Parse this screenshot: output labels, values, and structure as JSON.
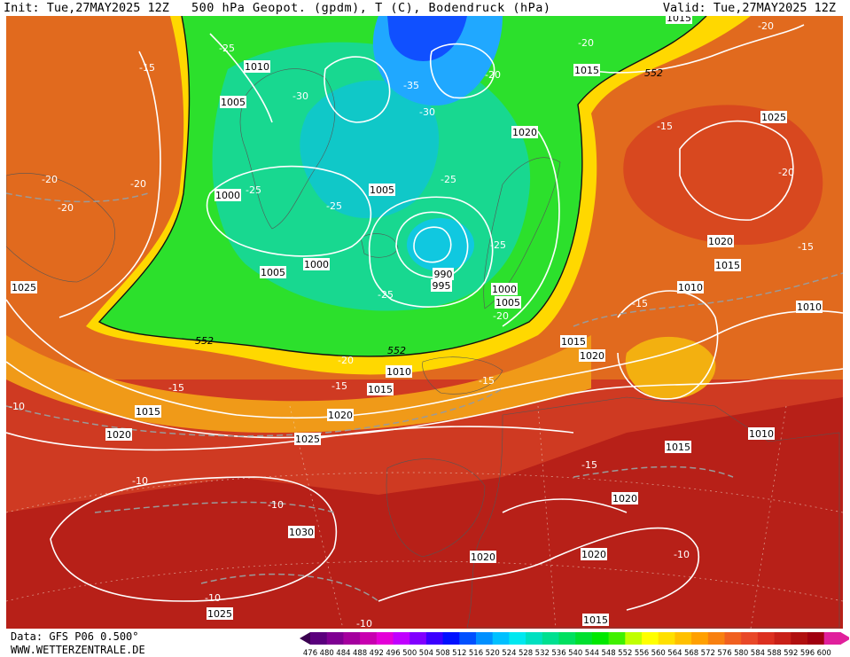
{
  "header": {
    "init": "Init: Tue,27MAY2025 12Z",
    "title": "500 hPa Geopot. (gpdm), T (C), Bodendruck (hPa)",
    "valid": "Valid: Tue,27MAY2025 12Z"
  },
  "footer": {
    "data_source": "Data: GFS P06 0.500°",
    "website": "WWW.WETTERZENTRALE.DE"
  },
  "legend": {
    "ticks": [
      "476",
      "480",
      "484",
      "488",
      "492",
      "496",
      "500",
      "504",
      "508",
      "512",
      "516",
      "520",
      "524",
      "528",
      "532",
      "536",
      "540",
      "544",
      "548",
      "552",
      "556",
      "560",
      "564",
      "568",
      "572",
      "576",
      "580",
      "584",
      "588",
      "592",
      "596",
      "600"
    ],
    "colors": [
      "#5a007d",
      "#7e0092",
      "#a4009e",
      "#c800b0",
      "#e400d8",
      "#c000ff",
      "#8000ff",
      "#3b00ff",
      "#0010ff",
      "#0050ff",
      "#0090ff",
      "#00c0ff",
      "#00e8f0",
      "#00e0c0",
      "#00e090",
      "#00e060",
      "#00e030",
      "#00e800",
      "#40f000",
      "#c0ff00",
      "#ffff00",
      "#ffe000",
      "#ffc000",
      "#ffa000",
      "#f88010",
      "#f06020",
      "#e84828",
      "#dc3020",
      "#c82018",
      "#b01010",
      "#a00010",
      "#e0209c"
    ]
  },
  "map": {
    "pressure_labels": [
      "1010",
      "1005",
      "1000",
      "1005",
      "1000",
      "1005",
      "990",
      "995",
      "1000",
      "1005",
      "1010",
      "1015",
      "1015",
      "1020",
      "1020",
      "1025",
      "1025",
      "1030",
      "1020",
      "1020",
      "1025",
      "1020",
      "1015",
      "1010",
      "1010",
      "1015",
      "1020",
      "1015",
      "1010",
      "1025",
      "1015",
      "1015",
      "1020",
      "1020",
      "1015"
    ],
    "temperature_labels": [
      "-15",
      "-20",
      "-20",
      "-20",
      "-25",
      "-30",
      "-35",
      "-30",
      "-20",
      "-25",
      "-25",
      "-25",
      "-25",
      "-25",
      "-20",
      "-20",
      "-15",
      "-15",
      "-15",
      "-10",
      "-10",
      "-10",
      "-15",
      "-15",
      "-20",
      "-20",
      "-15",
      "-10",
      "-20",
      "-15",
      "-10",
      "-10"
    ],
    "geopot_labels": [
      "552",
      "552",
      "552"
    ]
  }
}
